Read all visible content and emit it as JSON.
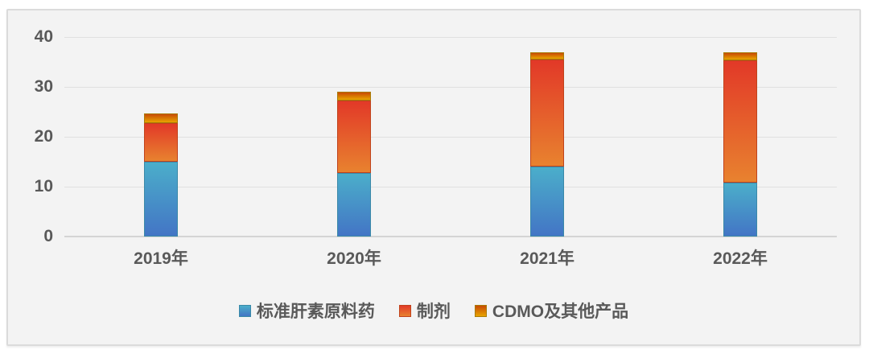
{
  "chart_data": {
    "type": "bar",
    "stacked": true,
    "title": "",
    "xlabel": "",
    "ylabel": "",
    "categories": [
      "2019年",
      "2020年",
      "2021年",
      "2022年"
    ],
    "series": [
      {
        "name": "标准肝素原料药",
        "values": [
          15.0,
          12.8,
          14.0,
          10.9
        ],
        "color_top": "#4BAECA",
        "color_bottom": "#4375C5",
        "border_color": "#3A89A8"
      },
      {
        "name": "制剂",
        "values": [
          7.7,
          14.6,
          21.5,
          24.5
        ],
        "color_top": "#E23928",
        "color_bottom": "#E8822F",
        "border_color": "#C0431C"
      },
      {
        "name": "CDMO及其他产品",
        "values": [
          2.0,
          1.7,
          1.5,
          1.6
        ],
        "color_top": "#C84A05",
        "color_bottom": "#E8A400",
        "border_color": "#A97B06"
      }
    ],
    "ylim": [
      0,
      40
    ],
    "yticks": [
      0,
      10,
      20,
      30,
      40
    ],
    "grid": true,
    "legend_position": "bottom",
    "tick_color": "#595959"
  }
}
